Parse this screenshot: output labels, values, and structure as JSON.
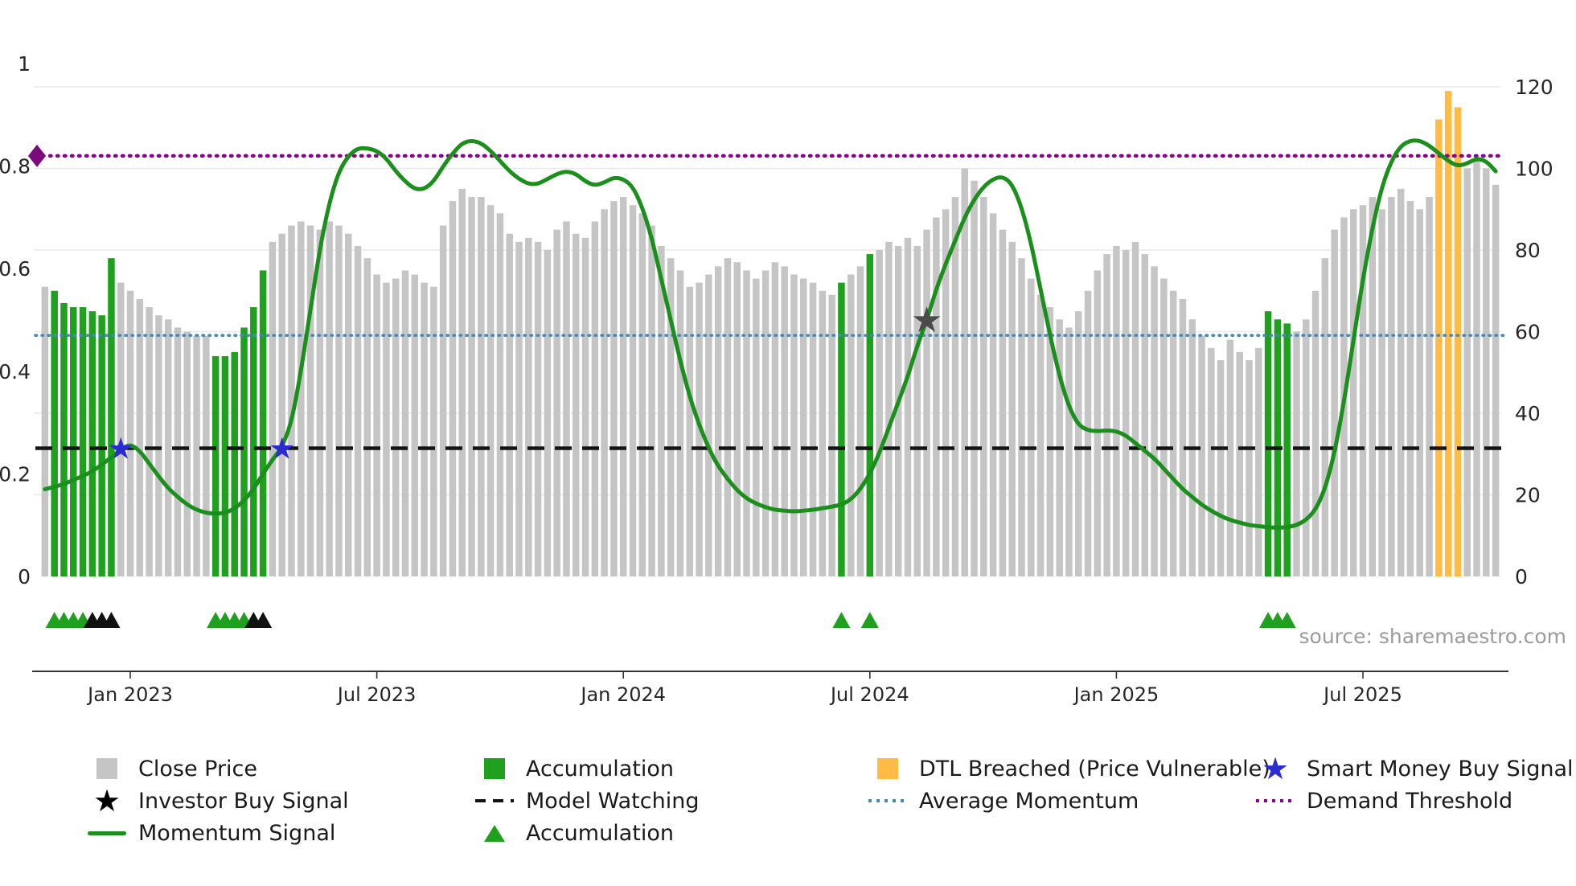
{
  "chart_data": {
    "type": "bar+line",
    "title": "",
    "source": "source: sharemaestro.com",
    "x_ticks": [
      {
        "label": "Jan 2023",
        "index": 9
      },
      {
        "label": "Jul 2023",
        "index": 35
      },
      {
        "label": "Jan 2024",
        "index": 61
      },
      {
        "label": "Jul 2024",
        "index": 87
      },
      {
        "label": "Jan 2025",
        "index": 113
      },
      {
        "label": "Jul 2025",
        "index": 139
      }
    ],
    "left_axis": {
      "ticks": [
        {
          "label": "0",
          "value": 0
        },
        {
          "label": "0.2",
          "value": 0.2
        },
        {
          "label": "0.4",
          "value": 0.4
        },
        {
          "label": "0.6",
          "value": 0.6
        },
        {
          "label": "0.8",
          "value": 0.8
        },
        {
          "label": "1",
          "value": 1
        }
      ],
      "range": [
        0,
        1
      ]
    },
    "right_axis": {
      "ticks": [
        0,
        20,
        40,
        60,
        80,
        100,
        120
      ],
      "range": [
        0,
        120
      ]
    },
    "bars": {
      "name": "Close Price",
      "values": [
        71,
        70,
        67,
        66,
        66,
        65,
        64,
        78,
        72,
        70,
        68,
        66,
        64,
        63,
        61,
        60,
        59,
        59,
        54,
        54,
        55,
        61,
        66,
        75,
        82,
        84,
        86,
        87,
        86,
        85,
        87,
        86,
        84,
        81,
        78,
        74,
        72,
        73,
        75,
        74,
        72,
        71,
        86,
        92,
        95,
        93,
        93,
        91,
        89,
        84,
        82,
        83,
        82,
        80,
        85,
        87,
        84,
        83,
        87,
        90,
        92,
        93,
        91,
        89,
        86,
        81,
        78,
        75,
        71,
        72,
        74,
        76,
        78,
        77,
        75,
        73,
        75,
        77,
        76,
        74,
        73,
        72,
        70,
        69,
        72,
        74,
        76,
        79,
        80,
        82,
        81,
        83,
        81,
        85,
        88,
        90,
        93,
        100,
        97,
        93,
        89,
        85,
        82,
        78,
        73,
        69,
        66,
        63,
        61,
        65,
        70,
        75,
        79,
        81,
        80,
        82,
        79,
        76,
        73,
        70,
        68,
        63,
        59,
        56,
        53,
        58,
        55,
        53,
        56,
        65,
        63,
        62,
        60,
        63,
        70,
        78,
        85,
        88,
        90,
        91,
        93,
        90,
        93,
        95,
        92,
        90,
        93,
        112,
        119,
        115,
        100,
        102,
        100,
        96
      ],
      "green_ranges": [
        [
          1,
          7
        ],
        [
          18,
          23
        ],
        [
          84,
          84
        ],
        [
          87,
          87
        ],
        [
          129,
          131
        ]
      ],
      "orange_ranges": [
        [
          147,
          149
        ]
      ]
    },
    "momentum": {
      "name": "Momentum Signal",
      "values": [
        0.17,
        0.175,
        0.18,
        0.188,
        0.196,
        0.205,
        0.218,
        0.232,
        0.248,
        0.258,
        0.245,
        0.22,
        0.195,
        0.172,
        0.155,
        0.14,
        0.13,
        0.124,
        0.122,
        0.124,
        0.132,
        0.148,
        0.17,
        0.2,
        0.228,
        0.252,
        0.3,
        0.4,
        0.52,
        0.64,
        0.73,
        0.79,
        0.82,
        0.835,
        0.835,
        0.83,
        0.815,
        0.79,
        0.77,
        0.755,
        0.755,
        0.77,
        0.8,
        0.825,
        0.845,
        0.85,
        0.845,
        0.83,
        0.81,
        0.79,
        0.775,
        0.765,
        0.765,
        0.775,
        0.785,
        0.79,
        0.785,
        0.77,
        0.762,
        0.768,
        0.778,
        0.775,
        0.76,
        0.72,
        0.66,
        0.58,
        0.5,
        0.42,
        0.35,
        0.295,
        0.25,
        0.215,
        0.19,
        0.168,
        0.152,
        0.142,
        0.135,
        0.13,
        0.128,
        0.127,
        0.128,
        0.13,
        0.133,
        0.136,
        0.14,
        0.15,
        0.17,
        0.2,
        0.24,
        0.29,
        0.34,
        0.39,
        0.45,
        0.5,
        0.56,
        0.61,
        0.655,
        0.7,
        0.735,
        0.76,
        0.775,
        0.78,
        0.765,
        0.72,
        0.65,
        0.56,
        0.47,
        0.39,
        0.33,
        0.295,
        0.285,
        0.283,
        0.285,
        0.283,
        0.275,
        0.26,
        0.245,
        0.23,
        0.21,
        0.19,
        0.17,
        0.155,
        0.14,
        0.128,
        0.118,
        0.11,
        0.105,
        0.1,
        0.098,
        0.096,
        0.095,
        0.096,
        0.1,
        0.11,
        0.13,
        0.17,
        0.24,
        0.34,
        0.46,
        0.58,
        0.68,
        0.76,
        0.81,
        0.84,
        0.85,
        0.85,
        0.84,
        0.825,
        0.81,
        0.8,
        0.805,
        0.815,
        0.81,
        0.79
      ]
    },
    "hlines": [
      {
        "name": "Demand Threshold",
        "value": 0.82,
        "color": "#8b008b",
        "style": "dotted-bold"
      },
      {
        "name": "Average Momentum",
        "value": 0.47,
        "color": "#4787b5",
        "style": "dotted"
      },
      {
        "name": "Model Watching",
        "value": 0.25,
        "color": "#141414",
        "style": "dashed"
      }
    ],
    "markers": {
      "demand_diamond": {
        "value": 0.82
      },
      "smart_money": [
        {
          "index": 8,
          "value": 0.25
        },
        {
          "index": 25,
          "value": 0.25
        }
      ],
      "investor": [
        {
          "index": 93,
          "value": 0.5
        }
      ],
      "accumulation_green": [
        1,
        2,
        3,
        4,
        18,
        19,
        20,
        21,
        84,
        87,
        129,
        130,
        131
      ],
      "accumulation_black": [
        5,
        6,
        7,
        22,
        23
      ]
    },
    "colors": {
      "bar_gray": "#c5c5c5",
      "bar_green": "#1fa01f",
      "bar_orange": "#ffbb44",
      "momentum_line": "#1b8f1b",
      "demand": "#8b008b",
      "average": "#4787b5",
      "watching": "#141414",
      "smart_star": "#2b2bd0",
      "investor_star": "#4a4a4a",
      "diamond": "#7c0a7c",
      "triangle_green": "#1fa01f",
      "triangle_black": "#111111",
      "grid": "#e9e9e9",
      "axis_text": "#262626",
      "source_text": "#9b9b9b"
    },
    "legend_columns": [
      [
        {
          "swatch": "square",
          "color": "#c5c5c5",
          "label": "Close Price",
          "name": "close-price"
        },
        {
          "swatch": "star",
          "color": "#000000",
          "label": "Investor Buy Signal",
          "name": "investor-buy-signal"
        },
        {
          "swatch": "line",
          "color": "#1b8f1b",
          "label": "Momentum Signal",
          "name": "momentum-signal"
        }
      ],
      [
        {
          "swatch": "square",
          "color": "#1fa01f",
          "label": "Accumulation",
          "name": "accumulation-bars"
        },
        {
          "swatch": "dash",
          "color": "#111111",
          "label": "Model Watching",
          "name": "model-watching"
        },
        {
          "swatch": "triangle",
          "color": "#1fa01f",
          "label": "Accumulation",
          "name": "accumulation-markers"
        }
      ],
      [
        {
          "swatch": "square",
          "color": "#ffbb44",
          "label": "DTL Breached (Price Vulnerable)",
          "name": "dtl-breached"
        },
        {
          "swatch": "dot",
          "color": "#4787b5",
          "label": "Average Momentum",
          "name": "average-momentum"
        }
      ],
      [
        {
          "swatch": "star",
          "color": "#2b2bd0",
          "label": "Smart Money Buy Signal",
          "name": "smart-money-buy-signal"
        },
        {
          "swatch": "dot",
          "color": "#8b008b",
          "label": "Demand Threshold",
          "name": "demand-threshold"
        }
      ]
    ]
  }
}
